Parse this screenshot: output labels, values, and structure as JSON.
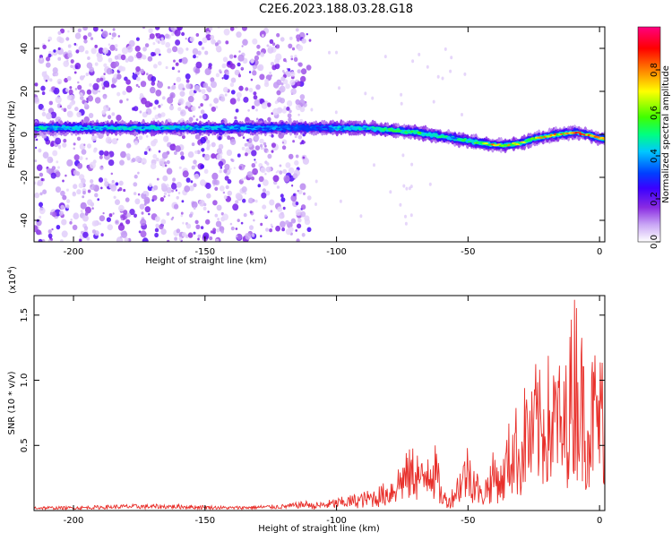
{
  "title": "C2E6.2023.188.03.28.G18",
  "chart_data": [
    {
      "type": "heatmap",
      "xlabel": "Height of straight line (km)",
      "ylabel": "Frequency (Hz)",
      "xlim": [
        -215,
        2
      ],
      "ylim": [
        -50,
        50
      ],
      "x_ticks": [
        -200,
        -150,
        -100,
        -50,
        0
      ],
      "y_ticks": [
        -40,
        -20,
        0,
        20,
        40
      ],
      "colorbar": {
        "label": "Normalized spectral amplitude",
        "range": [
          0,
          1
        ],
        "ticks": [
          0.0,
          0.2,
          0.4,
          0.6,
          0.8
        ],
        "colormap": [
          "#ffffff",
          "#c9a6f5",
          "#8a2be2",
          "#3a00ff",
          "#0040ff",
          "#00c8ff",
          "#00ff80",
          "#40ff00",
          "#ffff00",
          "#ff8000",
          "#ff0000",
          "#ff0080"
        ]
      },
      "ridge": {
        "x": [
          -215,
          -200,
          -180,
          -160,
          -140,
          -120,
          -110,
          -100,
          -90,
          -80,
          -70,
          -60,
          -55,
          -50,
          -45,
          -40,
          -35,
          -30,
          -25,
          -20,
          -15,
          -10,
          -5,
          0,
          2
        ],
        "frequency": [
          3,
          3,
          3,
          3,
          3,
          3,
          3,
          3,
          3,
          2,
          1,
          -1,
          -2,
          -3,
          -4,
          -5,
          -5,
          -4,
          -2,
          -1,
          0,
          1,
          0,
          -2,
          -2
        ],
        "peak_amplitude": [
          0.5,
          0.45,
          0.5,
          0.5,
          0.45,
          0.4,
          0.35,
          0.45,
          0.5,
          0.6,
          0.6,
          0.55,
          0.5,
          0.6,
          0.7,
          0.8,
          0.75,
          0.7,
          0.75,
          0.8,
          0.8,
          0.85,
          0.9,
          0.85,
          0.85
        ]
      },
      "noise_region_x": [
        -215,
        -110
      ]
    },
    {
      "type": "line",
      "xlabel": "Height of straight line (km)",
      "ylabel": "SNR (10 * v/v)",
      "y_exponent": "(x10",
      "y_exponent_power": "4",
      "y_exponent_close": ")",
      "xlim": [
        -215,
        2
      ],
      "ylim": [
        0,
        1.65
      ],
      "x_ticks": [
        -200,
        -150,
        -100,
        -50,
        0
      ],
      "y_ticks": [
        0.5,
        1.0,
        1.5
      ],
      "color": "#e8302b",
      "series": [
        {
          "x": [
            -215,
            -200,
            -180,
            -160,
            -140,
            -120,
            -110,
            -105,
            -100,
            -95,
            -90,
            -85,
            -80,
            -75,
            -72,
            -70,
            -67,
            -65,
            -62,
            -60,
            -57,
            -55,
            -52,
            -50,
            -47,
            -45,
            -42,
            -40,
            -37,
            -35,
            -32,
            -30,
            -28,
            -26,
            -24,
            -22,
            -20,
            -18,
            -16,
            -14,
            -12,
            -10,
            -9,
            -8,
            -6,
            -4,
            -2,
            0,
            2
          ],
          "values": [
            0.02,
            0.02,
            0.03,
            0.03,
            0.02,
            0.03,
            0.05,
            0.06,
            0.08,
            0.1,
            0.12,
            0.15,
            0.2,
            0.35,
            0.4,
            0.45,
            0.3,
            0.55,
            0.4,
            0.15,
            0.1,
            0.2,
            0.35,
            0.45,
            0.3,
            0.15,
            0.3,
            0.4,
            0.3,
            0.55,
            0.7,
            0.55,
            0.9,
            0.75,
            1.0,
            0.85,
            1.05,
            0.9,
            1.1,
            0.75,
            1.2,
            1.3,
            1.62,
            1.3,
            1.1,
            0.9,
            1.1,
            1.0,
            1.15
          ]
        }
      ]
    }
  ]
}
